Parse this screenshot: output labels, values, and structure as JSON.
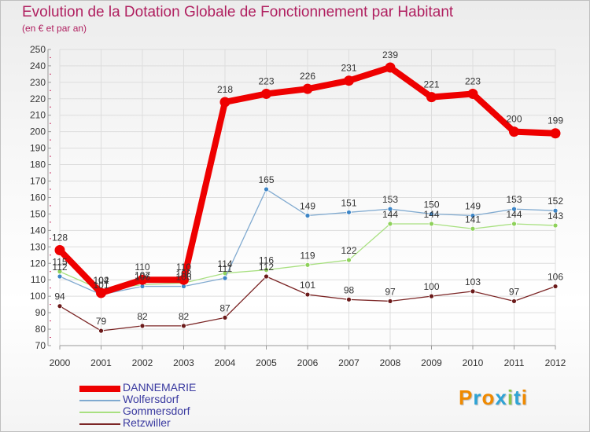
{
  "title": "Evolution de la Dotation Globale de Fonctionnement par Habitant",
  "subtitle": "(en € et par an)",
  "logo": {
    "text": "Proxiti",
    "letters": [
      "P",
      "r",
      "o",
      "x",
      "i",
      "t",
      "i"
    ],
    "colors": [
      "#f08a00",
      "#2ea3d5",
      "#f08a00",
      "#2ea3d5",
      "#8bc34a",
      "#2ea3d5",
      "#f08a00"
    ]
  },
  "chart_data": {
    "type": "line",
    "title": "Evolution de la Dotation Globale de Fonctionnement par Habitant",
    "subtitle": "(en € et par an)",
    "x": [
      "2000",
      "2001",
      "2002",
      "2003",
      "2004",
      "2005",
      "2006",
      "2007",
      "2008",
      "2009",
      "2010",
      "2011",
      "2012"
    ],
    "ylim": [
      70,
      250
    ],
    "yticks": [
      70,
      80,
      90,
      100,
      110,
      120,
      130,
      140,
      150,
      160,
      170,
      180,
      190,
      200,
      210,
      220,
      230,
      240,
      250
    ],
    "grid": true,
    "legend_position": "bottom-left",
    "series": [
      {
        "name": "Retzwiller",
        "color": "#7b2525",
        "point_color": "#6b1a1a",
        "width": 1.3,
        "radius": 3,
        "values": [
          94,
          79,
          82,
          82,
          87,
          112,
          101,
          98,
          97,
          100,
          103,
          97,
          106
        ]
      },
      {
        "name": "Gommersdorf",
        "color": "#a8e080",
        "point_color": "#8ed15a",
        "width": 1.3,
        "radius": 3,
        "values": [
          115,
          104,
          107,
          108,
          114,
          116,
          119,
          122,
          144,
          144,
          141,
          144,
          143
        ]
      },
      {
        "name": "Wolfersdorf",
        "color": "#80aad0",
        "point_color": "#3d85c6",
        "width": 1.3,
        "radius": 3,
        "values": [
          112,
          101,
          106,
          106,
          111,
          165,
          149,
          151,
          153,
          150,
          149,
          153,
          152
        ]
      },
      {
        "name": "DANNEMARIE",
        "color": "#ee0000",
        "point_color": "#ee0000",
        "width": 8,
        "radius": 6.5,
        "values": [
          128,
          102,
          110,
          110,
          218,
          223,
          226,
          231,
          239,
          221,
          223,
          200,
          199
        ]
      }
    ]
  }
}
